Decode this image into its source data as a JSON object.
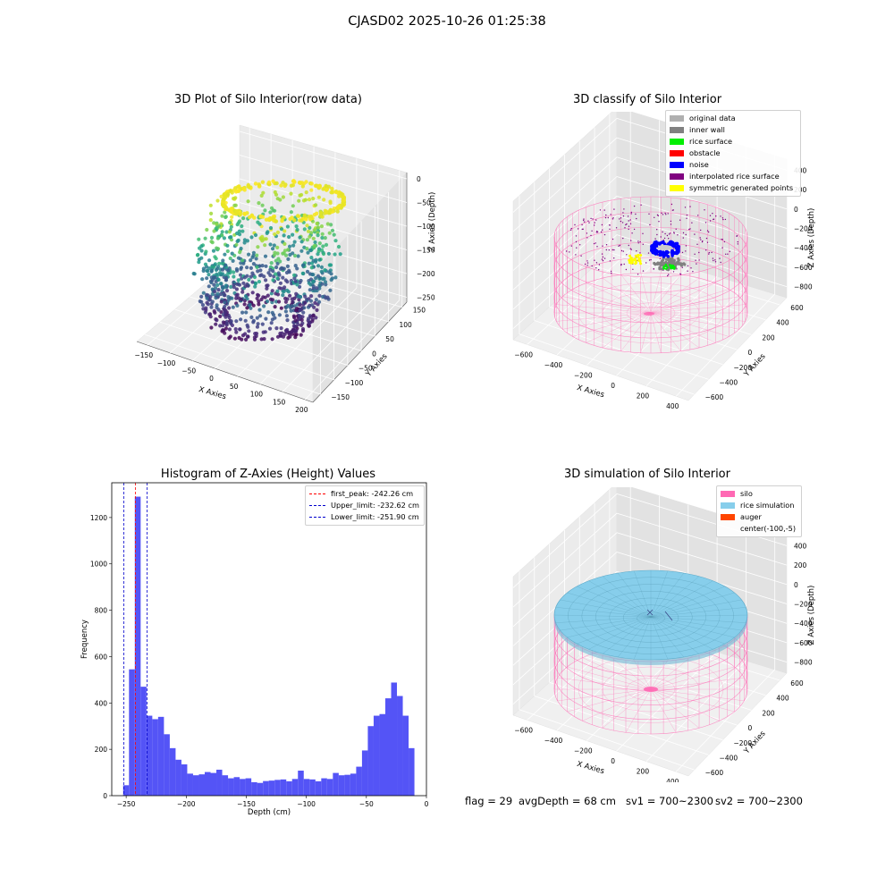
{
  "figure": {
    "suptitle": "CJASD02 2025-10-26 01:25:38",
    "footer": {
      "flag": "flag = 29",
      "avg_depth": "avgDepth = 68 cm",
      "sv1": "sv1 = 700~2300",
      "sv2": "sv2 = 700~2300"
    }
  },
  "colors": {
    "hist_bar": "#4b4bf5",
    "first_peak": "#ff0000",
    "limit": "#0000cc",
    "silo": "#ff69b4",
    "rice": "#87ceeb",
    "auger": "#ff4500",
    "grey": "#808080",
    "original": "#b0b0b0",
    "rice_surface": "#00ee00",
    "noise": "#0000ff",
    "interp": "#800080",
    "symmetric": "#ffff00"
  },
  "chart_data": [
    {
      "type": "scatter",
      "projection": "3d",
      "title": "3D Plot of Silo Interior(row data)",
      "xlabel": "X Axies",
      "ylabel": "Y Axies",
      "zlabel": "Z Axies (Depth)",
      "xticks": [
        "−150",
        "−100",
        "−50",
        "0",
        "50",
        "100",
        "150",
        "200"
      ],
      "yticks": [
        "−150",
        "−100",
        "−50",
        "0",
        "50",
        "100",
        "150"
      ],
      "zticks": [
        "0",
        "−50",
        "−100",
        "−150",
        "−200",
        "−250"
      ],
      "xlim": [
        -175,
        210
      ],
      "ylim": [
        -160,
        165
      ],
      "zlim": [
        -270,
        5
      ],
      "colormap": "viridis",
      "color_by": "z"
    },
    {
      "type": "scatter",
      "projection": "3d",
      "title": "3D classify of Silo Interior",
      "xlabel": "X Axies",
      "ylabel": "Y Axies",
      "zlabel": "Z Axies (Depth)",
      "xticks": [
        "−600",
        "−400",
        "−200",
        "0",
        "200",
        "400"
      ],
      "yticks": [
        "−600",
        "−400",
        "−200",
        "0",
        "200",
        "400",
        "600"
      ],
      "zticks": [
        "400",
        "200",
        "0",
        "−200",
        "−400",
        "−600",
        "−800"
      ],
      "legend_position": "top-right",
      "legend": [
        {
          "label": "original data",
          "color": "#b0b0b0"
        },
        {
          "label": "inner wall",
          "color": "#808080"
        },
        {
          "label": "rice surface",
          "color": "#00ee00"
        },
        {
          "label": "obstacle",
          "color": "#ff0000"
        },
        {
          "label": "noise",
          "color": "#0000ff"
        },
        {
          "label": "interpolated rice surface",
          "color": "#800080"
        },
        {
          "label": "symmetric generated points",
          "color": "#ffff00"
        }
      ]
    },
    {
      "type": "bar",
      "title": "Histogram of Z-Axies (Height) Values",
      "xlabel": "Depth (cm)",
      "ylabel": "Frequency",
      "xlim": [
        -262,
        0
      ],
      "ylim": [
        0,
        1350
      ],
      "xticks": [
        -250,
        -200,
        -150,
        -100,
        -50,
        0
      ],
      "yticks": [
        0,
        200,
        400,
        600,
        800,
        1000,
        1200
      ],
      "bin_start": -252.5,
      "bin_width": 4.85,
      "values": [
        45,
        545,
        1290,
        470,
        345,
        330,
        340,
        265,
        205,
        155,
        135,
        95,
        88,
        92,
        102,
        98,
        112,
        88,
        75,
        80,
        72,
        75,
        58,
        55,
        63,
        65,
        68,
        70,
        62,
        72,
        108,
        72,
        70,
        62,
        75,
        72,
        98,
        88,
        90,
        95,
        125,
        195,
        300,
        345,
        352,
        420,
        488,
        430,
        345,
        205
      ],
      "vlines": [
        {
          "label": "first_peak: -242.26 cm",
          "x": -242.26,
          "color": "#ff0000"
        },
        {
          "label": "Upper_limit: -232.62 cm",
          "x": -232.62,
          "color": "#0000cc"
        },
        {
          "label": "Lower_limit: -251.90 cm",
          "x": -251.9,
          "color": "#0000cc"
        }
      ],
      "legend_position": "top-right"
    },
    {
      "type": "surface",
      "projection": "3d",
      "title": "3D simulation of Silo Interior",
      "xlabel": "X Axies",
      "ylabel": "Y Axies",
      "zlabel": "Z Axies (Depth)",
      "xticks": [
        "−600",
        "−400",
        "−200",
        "0",
        "200",
        "400"
      ],
      "yticks": [
        "−600",
        "−400",
        "−200",
        "0",
        "200",
        "400",
        "600"
      ],
      "zticks": [
        "400",
        "200",
        "0",
        "−200",
        "−400",
        "−600",
        "−800"
      ],
      "legend_position": "top-right",
      "legend": [
        {
          "label": "silo",
          "color": "#ff69b4"
        },
        {
          "label": "rice simulation",
          "color": "#87ceeb"
        },
        {
          "label": "auger",
          "color": "#ff4500"
        },
        {
          "label": "center(-100,-5)",
          "color": ""
        }
      ]
    }
  ]
}
